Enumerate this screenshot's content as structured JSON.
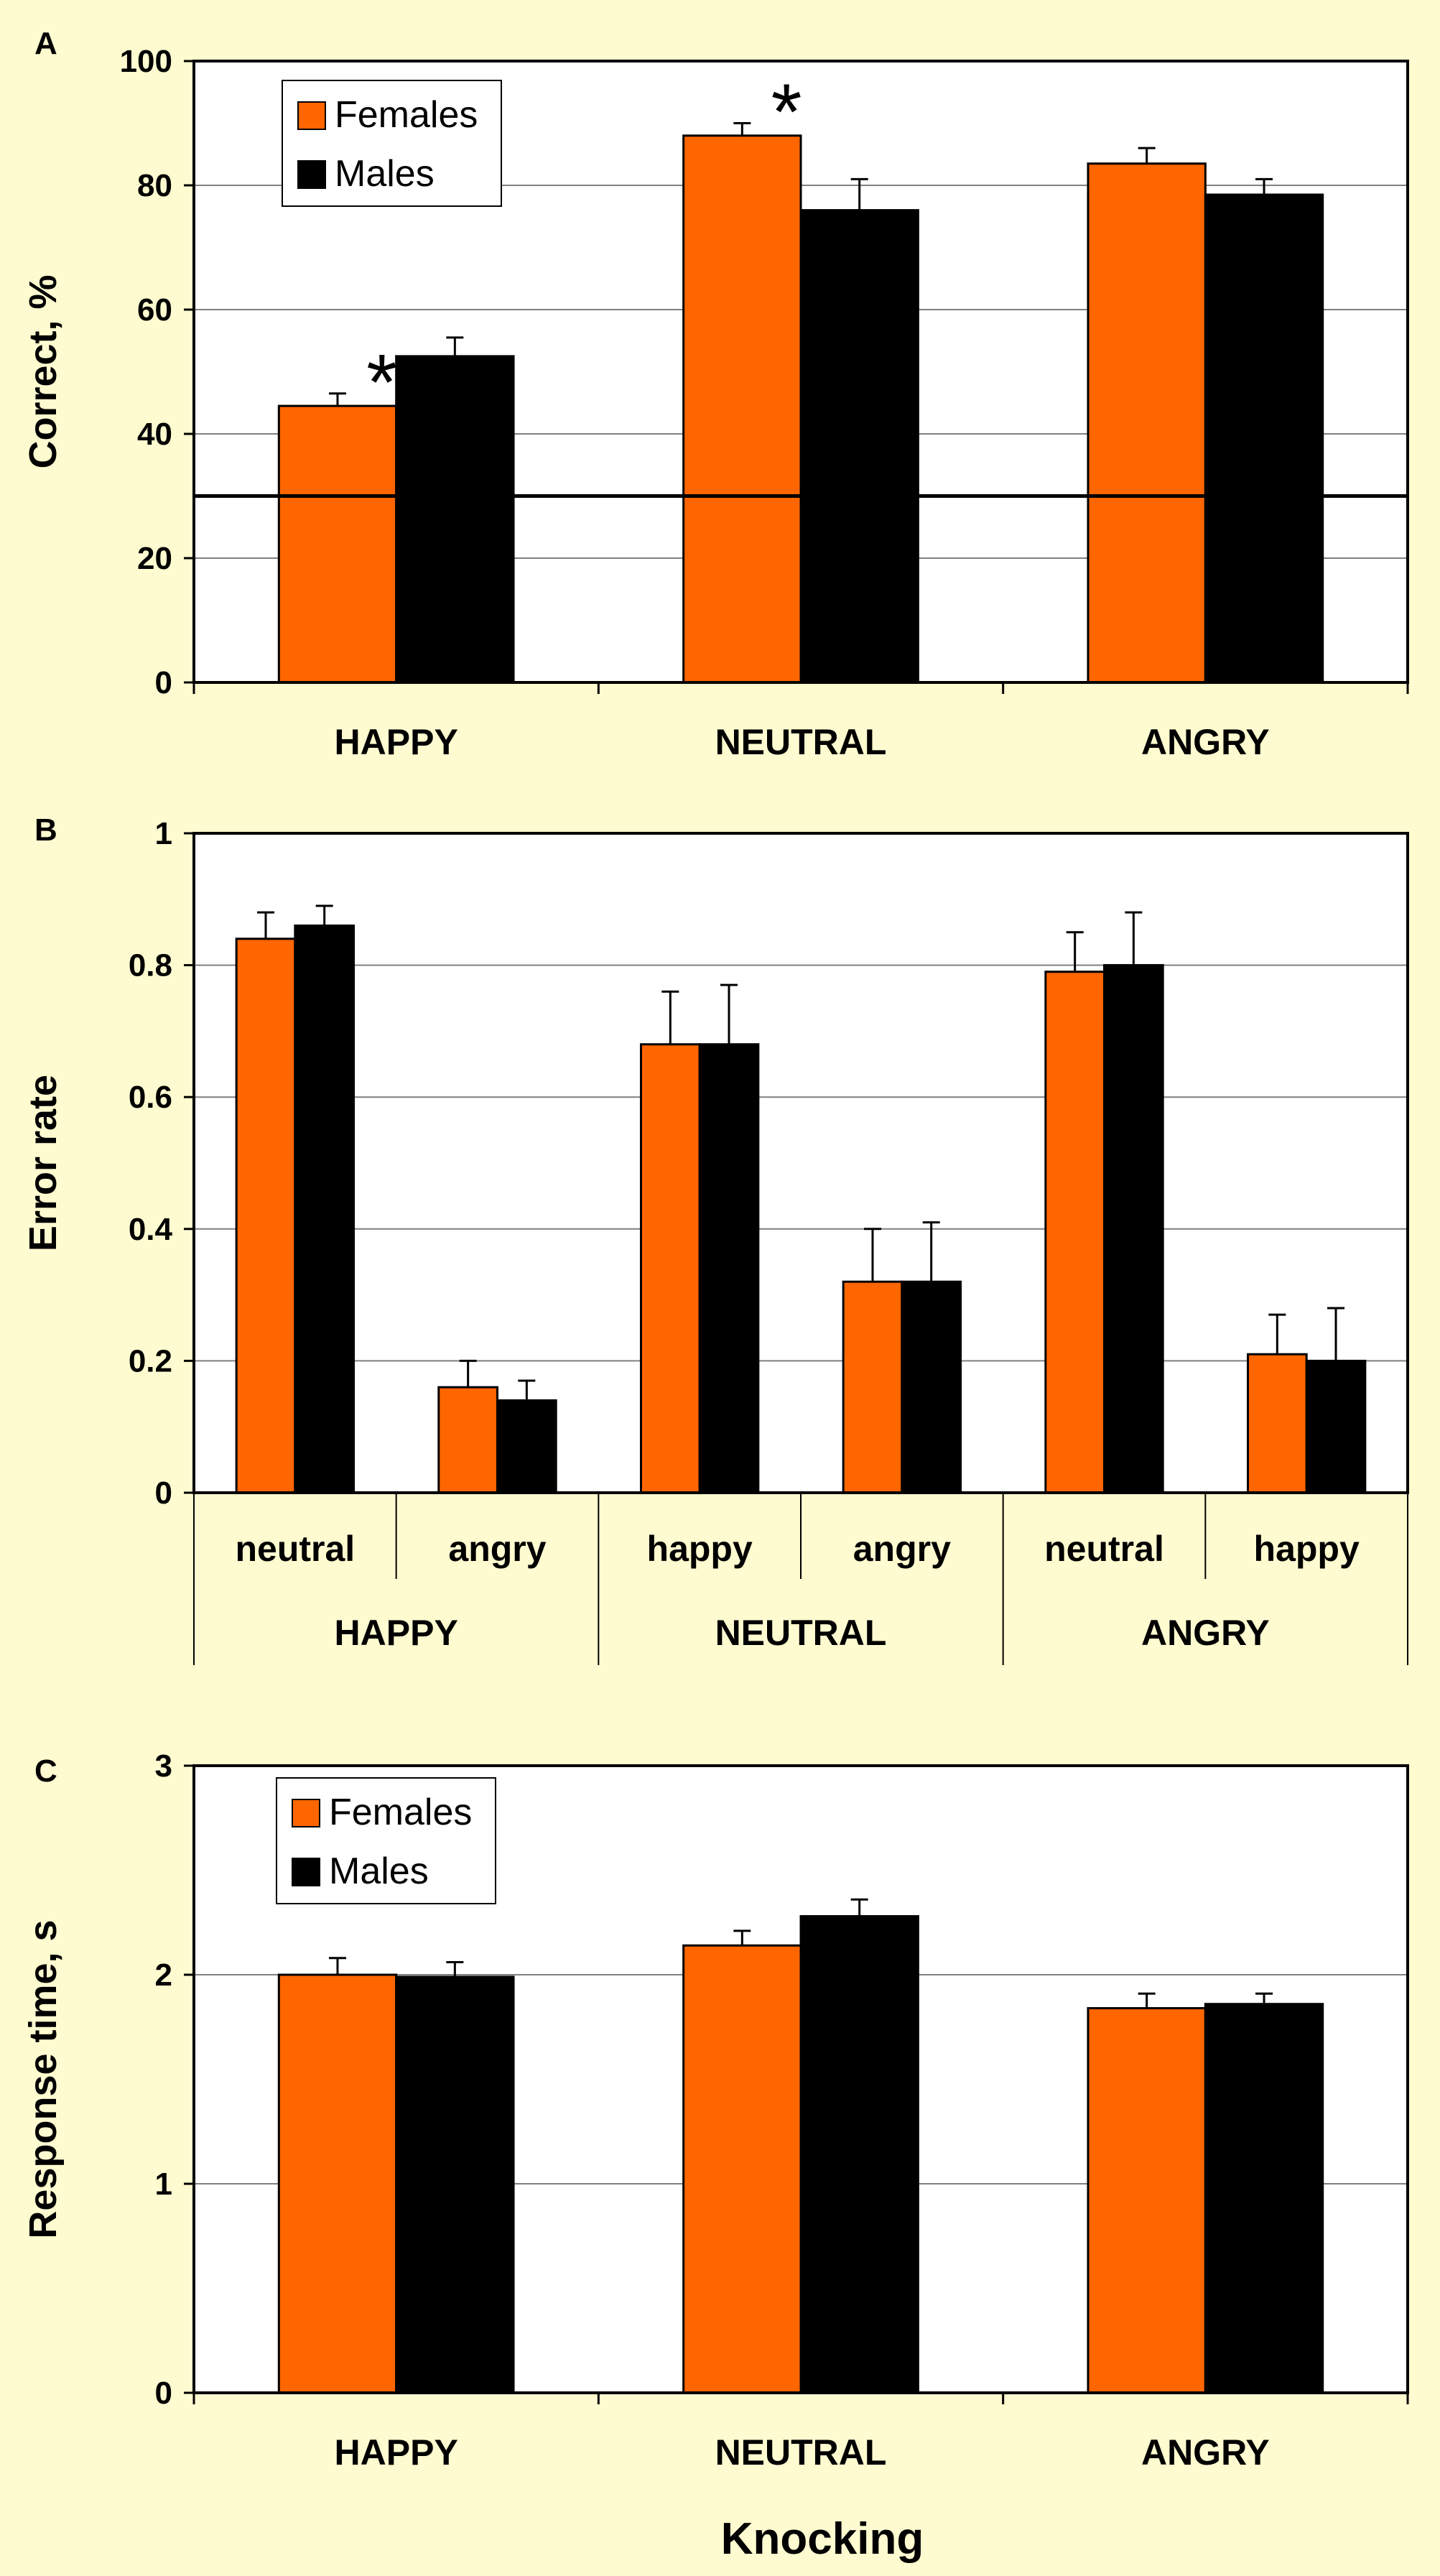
{
  "colors": {
    "females": "#ff6600",
    "males": "#000000",
    "background": "#fffbd0",
    "plot_bg": "#ffffff",
    "grid": "#808080"
  },
  "chart_data": [
    {
      "panel": "A",
      "type": "bar",
      "ylabel": "Correct, %",
      "ylim": [
        0,
        100
      ],
      "yticks": [
        "0",
        "20",
        "40",
        "60",
        "80",
        "100"
      ],
      "categories": [
        "HAPPY",
        "NEUTRAL",
        "ANGRY"
      ],
      "legend": [
        "Females",
        "Males"
      ],
      "legend_position": "top-left",
      "chance_line": 30,
      "series": [
        {
          "name": "Females",
          "values": [
            44.5,
            88,
            83.5
          ],
          "errors": [
            2,
            2,
            2.5
          ]
        },
        {
          "name": "Males",
          "values": [
            52.5,
            76,
            78.5
          ],
          "errors": [
            3,
            5,
            2.5
          ]
        }
      ],
      "annotations": [
        {
          "text": "*",
          "category": 0
        },
        {
          "text": "*",
          "category": 1
        }
      ]
    },
    {
      "panel": "B",
      "type": "bar",
      "ylabel": "Error rate",
      "ylim": [
        0,
        1
      ],
      "yticks": [
        "0",
        "0.2",
        "0.4",
        "0.6",
        "0.8",
        "1"
      ],
      "categories": [
        "neutral",
        "angry",
        "happy",
        "angry",
        "neutral",
        "happy"
      ],
      "groups": [
        "HAPPY",
        "NEUTRAL",
        "ANGRY"
      ],
      "series": [
        {
          "name": "Females",
          "values": [
            0.84,
            0.16,
            0.68,
            0.32,
            0.79,
            0.21
          ],
          "errors": [
            0.04,
            0.04,
            0.08,
            0.08,
            0.06,
            0.06
          ]
        },
        {
          "name": "Males",
          "values": [
            0.86,
            0.14,
            0.68,
            0.32,
            0.8,
            0.2
          ],
          "errors": [
            0.03,
            0.03,
            0.09,
            0.09,
            0.08,
            0.08
          ]
        }
      ]
    },
    {
      "panel": "C",
      "type": "bar",
      "ylabel": "Response time, s",
      "ylim": [
        0,
        3
      ],
      "yticks": [
        "0",
        "1",
        "2",
        "3"
      ],
      "categories": [
        "HAPPY",
        "NEUTRAL",
        "ANGRY"
      ],
      "xlabel": "Knocking",
      "legend": [
        "Females",
        "Males"
      ],
      "legend_position": "top-left",
      "series": [
        {
          "name": "Females",
          "values": [
            2.0,
            2.14,
            1.84
          ],
          "errors": [
            0.08,
            0.07,
            0.07
          ]
        },
        {
          "name": "Males",
          "values": [
            1.99,
            2.28,
            1.86
          ],
          "errors": [
            0.07,
            0.08,
            0.05
          ]
        }
      ]
    }
  ]
}
